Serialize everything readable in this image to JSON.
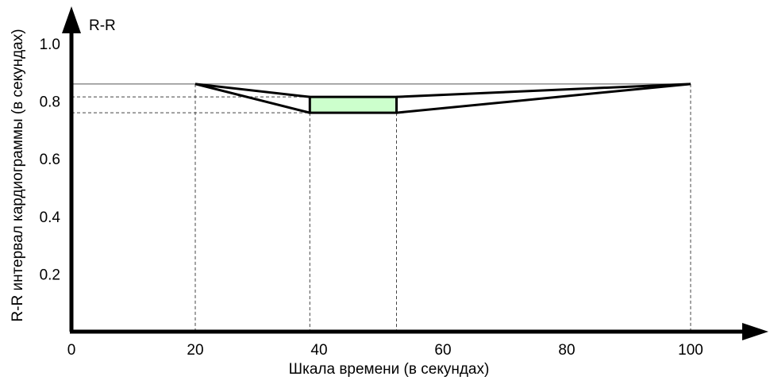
{
  "chart_data": {
    "type": "line",
    "axis_name": "R-R",
    "xlabel": "Шкала времени (в секундах)",
    "ylabel": "R-R интервал кардиограммы (в секундах)",
    "xlim": [
      0,
      100
    ],
    "ylim": [
      0,
      1.0
    ],
    "x_ticks": [
      0,
      20,
      40,
      60,
      80,
      100
    ],
    "y_ticks": [
      0.2,
      0.4,
      0.6,
      0.8,
      1.0
    ],
    "y_tick_labels": [
      "0.2",
      "0.4",
      "0.6",
      "0.8",
      "1.0"
    ],
    "grid": false,
    "series": [
      {
        "x": [
          20,
          38.5
        ],
        "y": [
          0.86,
          0.815
        ]
      },
      {
        "x": [
          20,
          38.5
        ],
        "y": [
          0.86,
          0.76
        ]
      },
      {
        "x": [
          52.5,
          100
        ],
        "y": [
          0.815,
          0.86
        ]
      },
      {
        "x": [
          52.5,
          100
        ],
        "y": [
          0.76,
          0.86
        ]
      }
    ],
    "highlight_box": {
      "x": [
        38.5,
        52.5
      ],
      "y": [
        0.76,
        0.815
      ],
      "color": "#ccffcc"
    },
    "reference_lines": {
      "horizontal_solid": {
        "y": 0.86,
        "x": [
          0,
          100
        ]
      },
      "horizontal_dashed": [
        {
          "y": 0.815,
          "x": [
            0,
            38.5
          ]
        },
        {
          "y": 0.76,
          "x": [
            0,
            38.5
          ]
        }
      ],
      "vertical_dashed": [
        {
          "x": 20
        },
        {
          "x": 38.5
        },
        {
          "x": 52.5
        },
        {
          "x": 100
        }
      ]
    }
  }
}
